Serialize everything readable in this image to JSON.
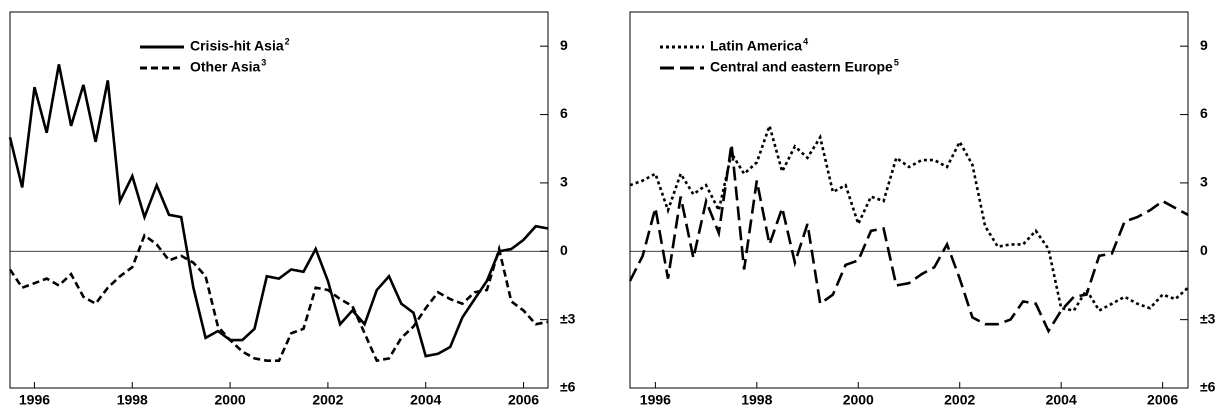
{
  "chart_data": [
    {
      "type": "line",
      "x": [
        1995.5,
        1995.75,
        1996,
        1996.25,
        1996.5,
        1996.75,
        1997,
        1997.25,
        1997.5,
        1997.75,
        1998,
        1998.25,
        1998.5,
        1998.75,
        1999,
        1999.25,
        1999.5,
        1999.75,
        2000,
        2000.25,
        2000.5,
        2000.75,
        2001,
        2001.25,
        2001.5,
        2001.75,
        2002,
        2002.25,
        2002.5,
        2002.75,
        2003,
        2003.25,
        2003.5,
        2003.75,
        2004,
        2004.25,
        2004.5,
        2004.75,
        2005,
        2005.25,
        2005.5,
        2005.75,
        2006,
        2006.25,
        2006.5
      ],
      "xlim": [
        1995.5,
        2006.5
      ],
      "xticks": [
        1996,
        1998,
        2000,
        2002,
        2004,
        2006
      ],
      "ylim": [
        -6,
        10.5
      ],
      "yticks": [
        {
          "value": -6,
          "label": "±6"
        },
        {
          "value": -3,
          "label": "±3"
        },
        0,
        3,
        6,
        9
      ],
      "legend": "top-left",
      "series": [
        {
          "name": "Crisis-hit Asia",
          "footnote": "2",
          "color": "#000000",
          "style": "solid",
          "values": [
            5.0,
            2.8,
            7.2,
            5.2,
            8.2,
            5.5,
            7.3,
            4.8,
            7.5,
            2.2,
            3.3,
            1.5,
            2.9,
            1.6,
            1.5,
            -1.6,
            -3.8,
            -3.5,
            -3.9,
            -3.9,
            -3.4,
            -1.1,
            -1.2,
            -0.8,
            -0.9,
            0.1,
            -1.3,
            -3.2,
            -2.6,
            -3.2,
            -1.7,
            -1.1,
            -2.3,
            -2.7,
            -4.6,
            -4.5,
            -4.2,
            -2.9,
            -2.1,
            -1.3,
            0.0,
            0.1,
            0.5,
            1.1,
            1.0
          ]
        },
        {
          "name": "Other Asia",
          "footnote": "3",
          "color": "#000000",
          "style": "dashed",
          "values": [
            -0.8,
            -1.6,
            -1.4,
            -1.2,
            -1.5,
            -1.0,
            -2.0,
            -2.3,
            -1.6,
            -1.1,
            -0.7,
            0.7,
            0.3,
            -0.4,
            -0.2,
            -0.5,
            -1.1,
            -3.3,
            -3.9,
            -4.4,
            -4.7,
            -4.8,
            -4.8,
            -3.6,
            -3.4,
            -1.6,
            -1.7,
            -2.1,
            -2.4,
            -3.6,
            -4.8,
            -4.7,
            -3.8,
            -3.3,
            -2.5,
            -1.8,
            -2.1,
            -2.3,
            -1.8,
            -1.7,
            0.1,
            -2.2,
            -2.6,
            -3.2,
            -3.1
          ]
        }
      ]
    },
    {
      "type": "line",
      "x": [
        1995.5,
        1995.75,
        1996,
        1996.25,
        1996.5,
        1996.75,
        1997,
        1997.25,
        1997.5,
        1997.75,
        1998,
        1998.25,
        1998.5,
        1998.75,
        1999,
        1999.25,
        1999.5,
        1999.75,
        2000,
        2000.25,
        2000.5,
        2000.75,
        2001,
        2001.25,
        2001.5,
        2001.75,
        2002,
        2002.25,
        2002.5,
        2002.75,
        2003,
        2003.25,
        2003.5,
        2003.75,
        2004,
        2004.25,
        2004.5,
        2004.75,
        2005,
        2005.25,
        2005.5,
        2005.75,
        2006,
        2006.25,
        2006.5
      ],
      "xlim": [
        1995.5,
        2006.5
      ],
      "xticks": [
        1996,
        1998,
        2000,
        2002,
        2004,
        2006
      ],
      "ylim": [
        -6,
        10.5
      ],
      "yticks": [
        {
          "value": -6,
          "label": "±6"
        },
        {
          "value": -3,
          "label": "±3"
        },
        0,
        3,
        6,
        9
      ],
      "legend": "top-left",
      "series": [
        {
          "name": "Latin America",
          "footnote": "4",
          "color": "#000000",
          "style": "dotted",
          "values": [
            2.9,
            3.1,
            3.4,
            1.8,
            3.4,
            2.5,
            2.9,
            1.8,
            4.3,
            3.4,
            3.9,
            5.5,
            3.5,
            4.6,
            4.1,
            5.0,
            2.6,
            2.9,
            1.2,
            2.4,
            2.2,
            4.1,
            3.7,
            4.0,
            4.0,
            3.7,
            4.8,
            3.8,
            1.1,
            0.2,
            0.3,
            0.3,
            0.9,
            0.1,
            -2.5,
            -2.6,
            -1.7,
            -2.6,
            -2.3,
            -2.0,
            -2.3,
            -2.5,
            -1.9,
            -2.1,
            -1.6
          ]
        },
        {
          "name": "Central and eastern Europe",
          "footnote": "5",
          "color": "#000000",
          "style": "longdash",
          "values": [
            -1.3,
            -0.2,
            1.9,
            -1.2,
            2.4,
            -0.3,
            2.2,
            0.8,
            4.7,
            -0.8,
            3.1,
            0.3,
            1.9,
            -0.5,
            1.2,
            -2.3,
            -1.9,
            -0.6,
            -0.4,
            0.9,
            1.0,
            -1.5,
            -1.4,
            -1.0,
            -0.7,
            0.3,
            -1.2,
            -2.9,
            -3.2,
            -3.2,
            -3.0,
            -2.2,
            -2.3,
            -3.5,
            -2.6,
            -2.0,
            -1.9,
            -0.2,
            -0.1,
            1.3,
            1.5,
            1.8,
            2.2,
            1.9,
            1.6
          ]
        }
      ]
    }
  ]
}
